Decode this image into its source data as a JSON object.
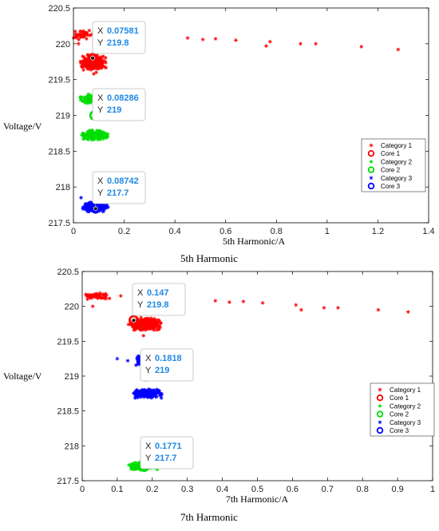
{
  "colors": {
    "cat1": "#ff0000",
    "cat2": "#00dd00",
    "cat3": "#0000ff",
    "tip_value": "#1e88e5"
  },
  "chart_data": [
    {
      "type": "scatter",
      "caption": "5th Harmonic",
      "xlabel": "5th Harmonic/A",
      "ylabel": "Voltage/V",
      "xlim": [
        0,
        1.4
      ],
      "ylim": [
        217.5,
        220.5
      ],
      "x_ticks": [
        "0",
        "0.2",
        "0.4",
        "0.6",
        "0.8",
        "1",
        "1.2",
        "1.4"
      ],
      "y_ticks": [
        "217.5",
        "218",
        "218.5",
        "219",
        "219.5",
        "220",
        "220.5"
      ],
      "legend": {
        "placement": "right",
        "entries": [
          "Category 1",
          "Core 1",
          "Category 2",
          "Core 2",
          "Category 3",
          "Core 3"
        ]
      },
      "series": [
        {
          "name": "Category 1",
          "color": "#ff0000",
          "marker": "asterisk",
          "clusters": [
            {
              "x": [
                0.0,
                0.08
              ],
              "y": [
                220.05,
                220.2
              ],
              "n": 40
            },
            {
              "x": [
                0.02,
                0.13
              ],
              "y": [
                219.62,
                219.85
              ],
              "n": 260
            }
          ],
          "points": [
            [
              0.45,
              220.08
            ],
            [
              0.51,
              220.06
            ],
            [
              0.56,
              220.07
            ],
            [
              0.64,
              220.05
            ],
            [
              0.76,
              219.97
            ],
            [
              0.775,
              220.03
            ],
            [
              0.895,
              220.0
            ],
            [
              0.955,
              220.0
            ],
            [
              1.135,
              219.96
            ],
            [
              1.28,
              219.92
            ],
            [
              0.08,
              219.58
            ],
            [
              0.09,
              219.6
            ],
            [
              0.02,
              220.0
            ]
          ]
        },
        {
          "name": "Category 2",
          "color": "#00dd00",
          "marker": "asterisk",
          "clusters": [
            {
              "x": [
                0.02,
                0.1
              ],
              "y": [
                219.15,
                219.3
              ],
              "n": 70
            },
            {
              "x": [
                0.03,
                0.14
              ],
              "y": [
                218.65,
                218.8
              ],
              "n": 200
            }
          ],
          "points": []
        },
        {
          "name": "Category 3",
          "color": "#0000ff",
          "marker": "asterisk",
          "clusters": [
            {
              "x": [
                0.03,
                0.14
              ],
              "y": [
                217.65,
                217.8
              ],
              "n": 200
            }
          ],
          "points": [
            [
              0.03,
              217.85
            ]
          ]
        }
      ],
      "cores": [
        {
          "name": "Core 1",
          "color": "#ff0000",
          "x": 0.07581,
          "y": 219.8
        },
        {
          "name": "Core 2",
          "color": "#00dd00",
          "x": 0.08286,
          "y": 219
        },
        {
          "name": "Core 3",
          "color": "#0000ff",
          "x": 0.08742,
          "y": 217.7
        }
      ],
      "datatips": [
        {
          "x_label": "X",
          "x_value": "0.07581",
          "y_label": "Y",
          "y_value": "219.8"
        },
        {
          "x_label": "X",
          "x_value": "0.08286",
          "y_label": "Y",
          "y_value": "219"
        },
        {
          "x_label": "X",
          "x_value": "0.08742",
          "y_label": "Y",
          "y_value": "217.7"
        }
      ]
    },
    {
      "type": "scatter",
      "caption": "7th Harmonic",
      "xlabel": "7th Harmonic/A",
      "ylabel": "Voltage/V",
      "xlim": [
        0,
        1
      ],
      "ylim": [
        217.5,
        220.5
      ],
      "x_ticks": [
        "0",
        "0.1",
        "0.2",
        "0.3",
        "0.4",
        "0.5",
        "0.6",
        "0.7",
        "0.8",
        "0.9",
        "1"
      ],
      "y_ticks": [
        "217.5",
        "218",
        "218.5",
        "219",
        "219.5",
        "220",
        "220.5"
      ],
      "legend": {
        "placement": "right",
        "entries": [
          "Category 1",
          "Core 1",
          "Category 2",
          "Core 2",
          "Category 3",
          "Core 3"
        ]
      },
      "series": [
        {
          "name": "Category 1",
          "color": "#ff0000",
          "marker": "asterisk",
          "clusters": [
            {
              "x": [
                0.0,
                0.08
              ],
              "y": [
                220.1,
                220.2
              ],
              "n": 50
            },
            {
              "x": [
                0.13,
                0.23
              ],
              "y": [
                219.65,
                219.85
              ],
              "n": 260
            }
          ],
          "points": [
            [
              0.03,
              220.0
            ],
            [
              0.11,
              220.15
            ],
            [
              0.38,
              220.08
            ],
            [
              0.42,
              220.06
            ],
            [
              0.46,
              220.07
            ],
            [
              0.515,
              220.05
            ],
            [
              0.61,
              220.02
            ],
            [
              0.625,
              219.95
            ],
            [
              0.69,
              219.98
            ],
            [
              0.73,
              219.98
            ],
            [
              0.845,
              219.95
            ],
            [
              0.93,
              219.92
            ],
            [
              0.175,
              219.58
            ]
          ]
        },
        {
          "name": "Category 3",
          "color": "#0000ff",
          "marker": "asterisk",
          "clusters": [
            {
              "x": [
                0.15,
                0.2
              ],
              "y": [
                219.15,
                219.3
              ],
              "n": 70
            },
            {
              "x": [
                0.14,
                0.23
              ],
              "y": [
                218.68,
                218.82
              ],
              "n": 220
            }
          ],
          "points": [
            [
              0.1,
              219.25
            ],
            [
              0.13,
              219.22
            ]
          ]
        },
        {
          "name": "Category 2",
          "color": "#00dd00",
          "marker": "asterisk",
          "clusters": [
            {
              "x": [
                0.13,
                0.22
              ],
              "y": [
                217.65,
                217.78
              ],
              "n": 200
            }
          ],
          "points": []
        }
      ],
      "cores": [
        {
          "name": "Core 1",
          "color": "#ff0000",
          "x": 0.147,
          "y": 219.8
        },
        {
          "name": "Core 3",
          "color": "#0000ff",
          "x": 0.1818,
          "y": 219
        },
        {
          "name": "Core 2",
          "color": "#00dd00",
          "x": 0.1771,
          "y": 217.7
        }
      ],
      "datatips": [
        {
          "x_label": "X",
          "x_value": "0.147",
          "y_label": "Y",
          "y_value": "219.8"
        },
        {
          "x_label": "X",
          "x_value": "0.1818",
          "y_label": "Y",
          "y_value": "219"
        },
        {
          "x_label": "X",
          "x_value": "0.1771",
          "y_label": "Y",
          "y_value": "217.7"
        }
      ]
    }
  ]
}
